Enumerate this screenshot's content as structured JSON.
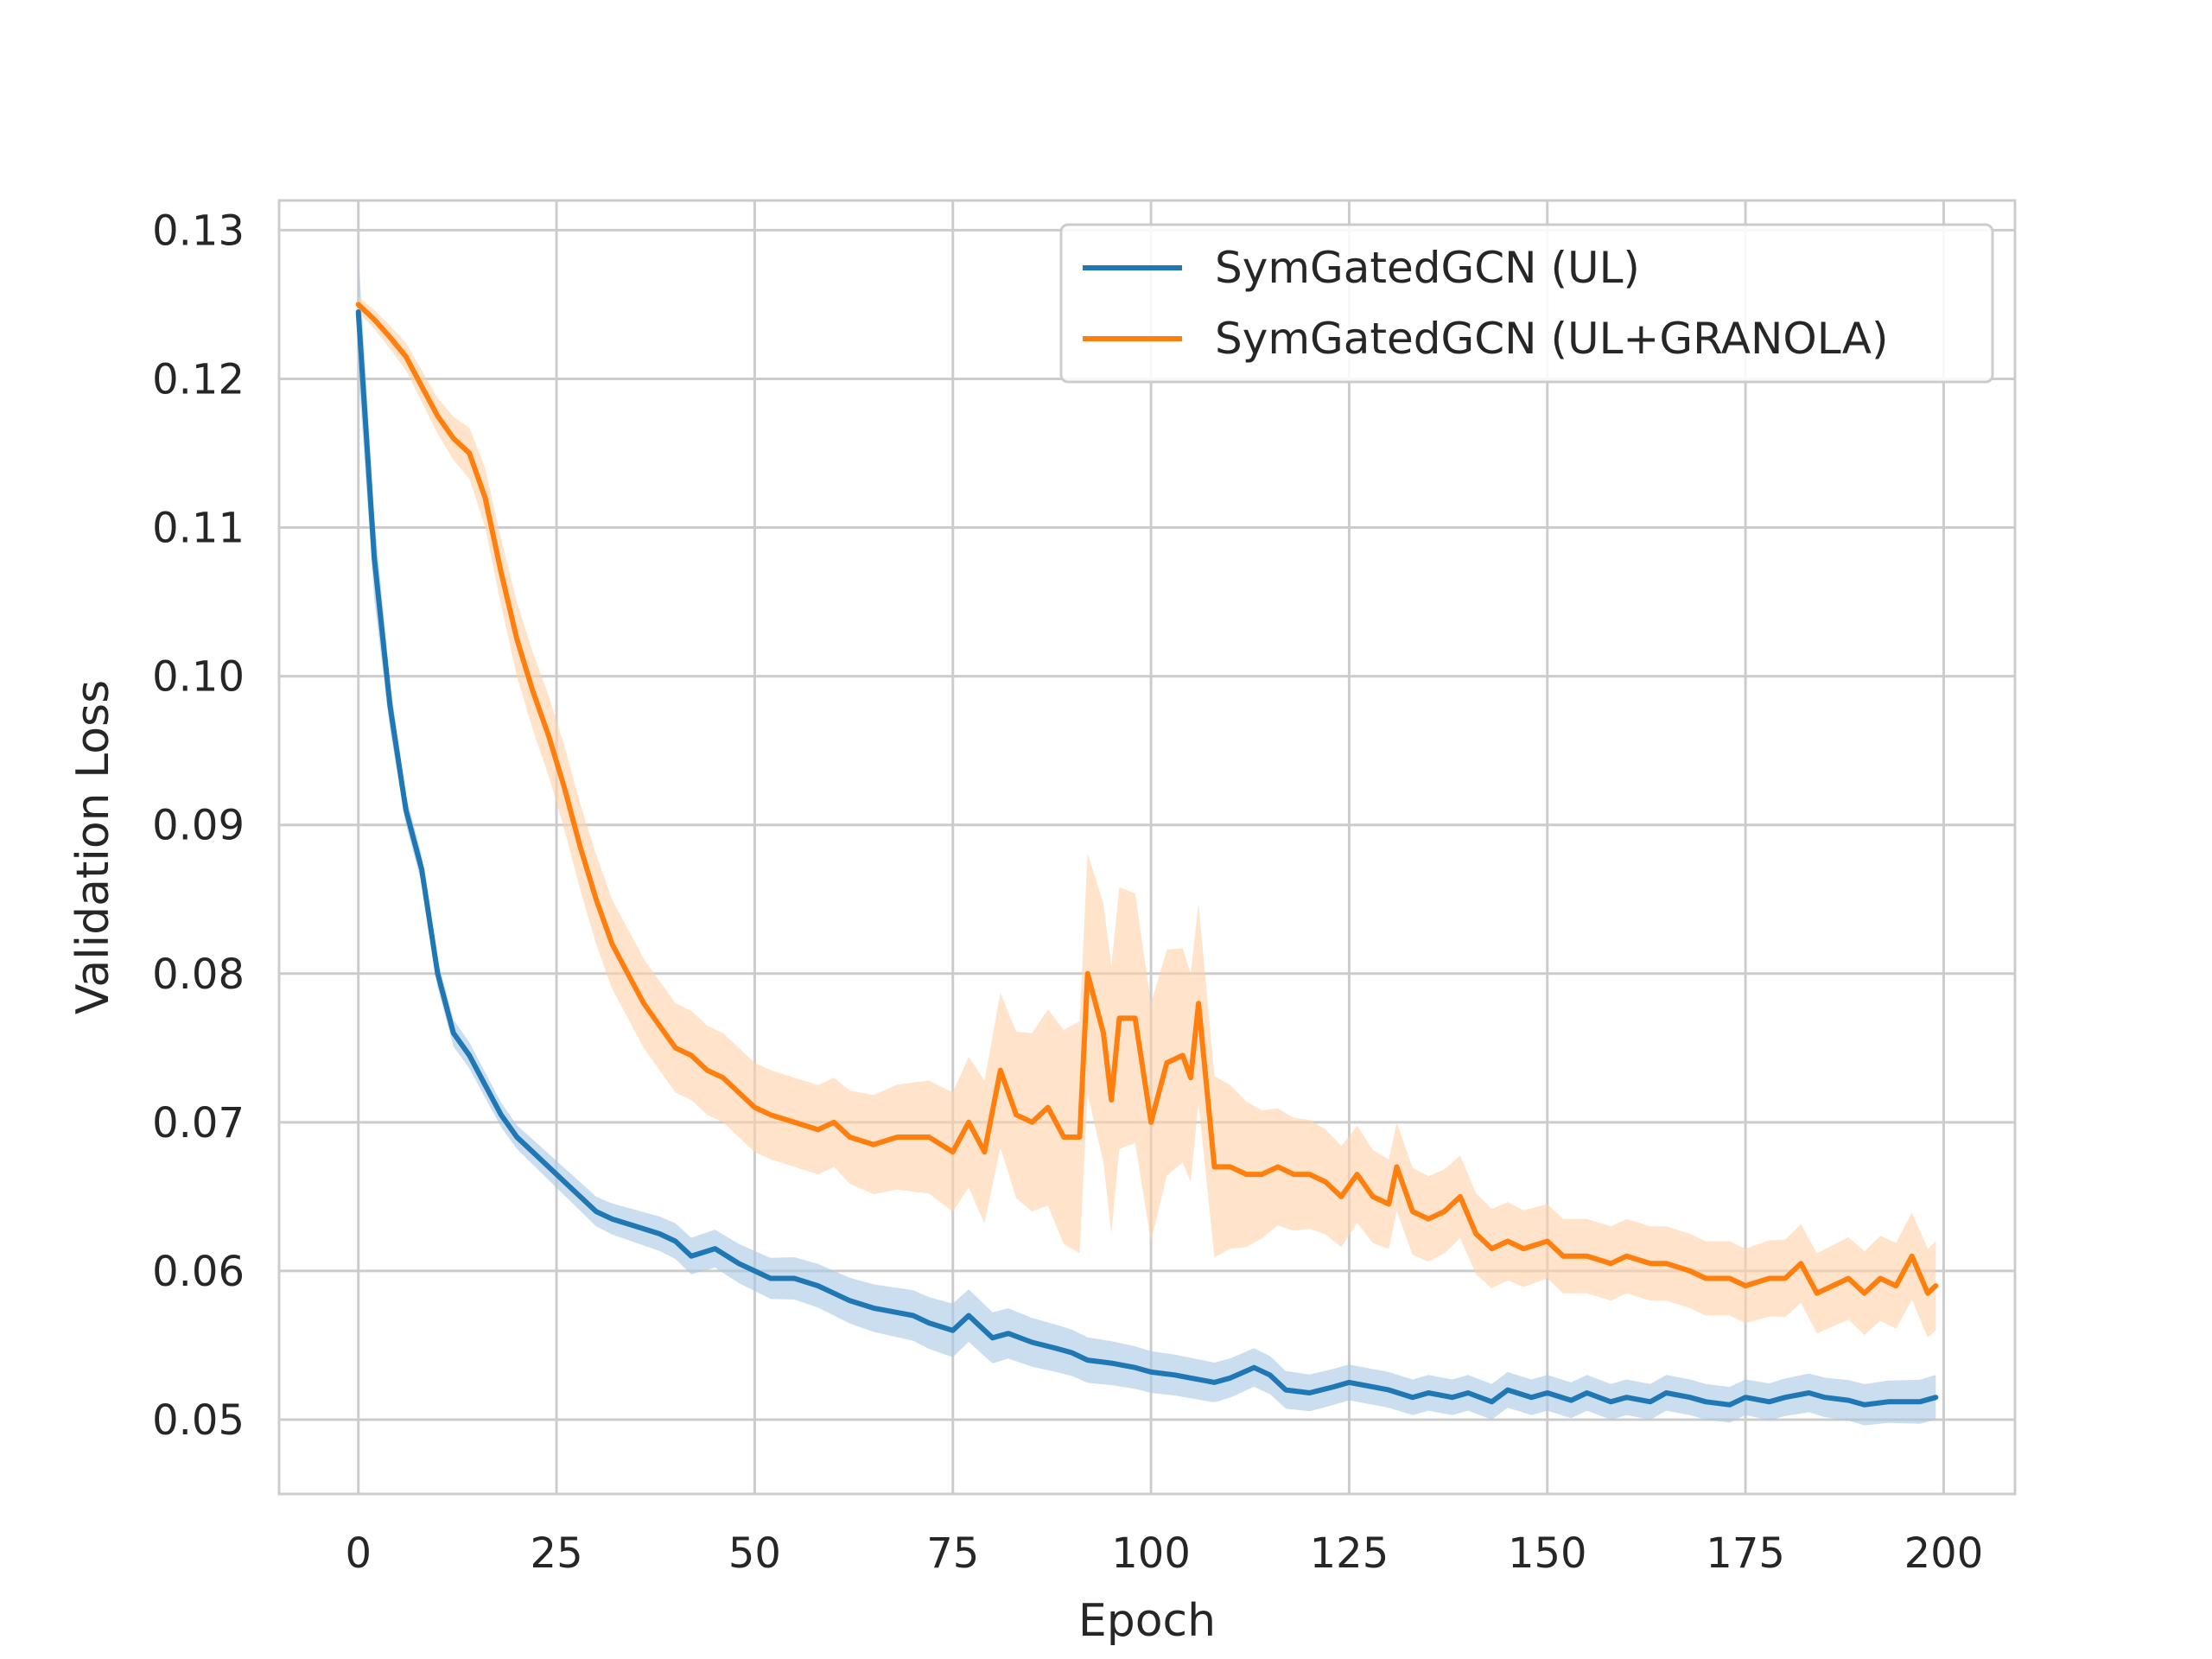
{
  "chart_data": {
    "type": "line",
    "title": "",
    "xlabel": "Epoch",
    "ylabel": "Validation Loss",
    "xlim": [
      -10,
      209
    ],
    "ylim": [
      0.045,
      0.132
    ],
    "xticks": [
      0,
      25,
      50,
      75,
      100,
      125,
      150,
      175,
      200
    ],
    "xtick_labels": [
      "0",
      "25",
      "50",
      "75",
      "100",
      "125",
      "150",
      "175",
      "200"
    ],
    "yticks": [
      0.05,
      0.06,
      0.07,
      0.08,
      0.09,
      0.1,
      0.11,
      0.12,
      0.13
    ],
    "ytick_labels": [
      "0.05",
      "0.06",
      "0.07",
      "0.08",
      "0.09",
      "0.10",
      "0.11",
      "0.12",
      "0.13"
    ],
    "grid": true,
    "legend_position": "top-right",
    "series": [
      {
        "name": "SymGatedGCN (UL)",
        "color": "#1f77b4",
        "band_color": "#a6c8e4",
        "points": [
          [
            0,
            0.1245
          ],
          [
            2,
            0.108
          ],
          [
            4,
            0.098
          ],
          [
            6,
            0.091
          ],
          [
            8,
            0.087
          ],
          [
            10,
            0.08
          ],
          [
            12,
            0.076
          ],
          [
            14,
            0.0745
          ],
          [
            16,
            0.0725
          ],
          [
            18,
            0.0705
          ],
          [
            20,
            0.069
          ],
          [
            22,
            0.068
          ],
          [
            24,
            0.067
          ],
          [
            26,
            0.066
          ],
          [
            28,
            0.065
          ],
          [
            30,
            0.064
          ],
          [
            32,
            0.0635
          ],
          [
            35,
            0.063
          ],
          [
            38,
            0.0625
          ],
          [
            40,
            0.062
          ],
          [
            42,
            0.061
          ],
          [
            45,
            0.0615
          ],
          [
            48,
            0.0605
          ],
          [
            50,
            0.06
          ],
          [
            52,
            0.0595
          ],
          [
            55,
            0.0595
          ],
          [
            58,
            0.059
          ],
          [
            60,
            0.0585
          ],
          [
            62,
            0.058
          ],
          [
            65,
            0.0575
          ],
          [
            68,
            0.0572
          ],
          [
            70,
            0.057
          ],
          [
            72,
            0.0565
          ],
          [
            75,
            0.056
          ],
          [
            77,
            0.057
          ],
          [
            80,
            0.0555
          ],
          [
            82,
            0.0558
          ],
          [
            85,
            0.0552
          ],
          [
            88,
            0.0548
          ],
          [
            90,
            0.0545
          ],
          [
            92,
            0.054
          ],
          [
            95,
            0.0538
          ],
          [
            98,
            0.0535
          ],
          [
            100,
            0.0532
          ],
          [
            103,
            0.053
          ],
          [
            105,
            0.0528
          ],
          [
            108,
            0.0525
          ],
          [
            110,
            0.0528
          ],
          [
            113,
            0.0535
          ],
          [
            115,
            0.053
          ],
          [
            117,
            0.052
          ],
          [
            120,
            0.0518
          ],
          [
            123,
            0.0522
          ],
          [
            125,
            0.0525
          ],
          [
            128,
            0.0522
          ],
          [
            130,
            0.052
          ],
          [
            133,
            0.0515
          ],
          [
            135,
            0.0518
          ],
          [
            138,
            0.0515
          ],
          [
            140,
            0.0518
          ],
          [
            143,
            0.0512
          ],
          [
            145,
            0.052
          ],
          [
            148,
            0.0515
          ],
          [
            150,
            0.0518
          ],
          [
            153,
            0.0513
          ],
          [
            155,
            0.0518
          ],
          [
            158,
            0.0512
          ],
          [
            160,
            0.0515
          ],
          [
            163,
            0.0512
          ],
          [
            165,
            0.0518
          ],
          [
            168,
            0.0515
          ],
          [
            170,
            0.0512
          ],
          [
            173,
            0.051
          ],
          [
            175,
            0.0515
          ],
          [
            178,
            0.0512
          ],
          [
            180,
            0.0515
          ],
          [
            183,
            0.0518
          ],
          [
            185,
            0.0515
          ],
          [
            188,
            0.0513
          ],
          [
            190,
            0.051
          ],
          [
            193,
            0.0512
          ],
          [
            195,
            0.0512
          ],
          [
            197,
            0.0512
          ],
          [
            199,
            0.0515
          ]
        ],
        "band_halfwidth": [
          [
            0,
            0.004
          ],
          [
            5,
            0.001
          ],
          [
            20,
            0.0008
          ],
          [
            40,
            0.0012
          ],
          [
            60,
            0.0015
          ],
          [
            75,
            0.0018
          ],
          [
            100,
            0.0014
          ],
          [
            125,
            0.0012
          ],
          [
            150,
            0.0012
          ],
          [
            175,
            0.0012
          ],
          [
            199,
            0.0015
          ]
        ]
      },
      {
        "name": "SymGatedGCN (UL+GRANOLA)",
        "color": "#ff7f0e",
        "band_color": "#ffd1a6",
        "points": [
          [
            0,
            0.125
          ],
          [
            2,
            0.124
          ],
          [
            4,
            0.1228
          ],
          [
            6,
            0.1215
          ],
          [
            8,
            0.1195
          ],
          [
            10,
            0.1175
          ],
          [
            12,
            0.116
          ],
          [
            14,
            0.115
          ],
          [
            16,
            0.112
          ],
          [
            18,
            0.107
          ],
          [
            20,
            0.1025
          ],
          [
            22,
            0.099
          ],
          [
            24,
            0.096
          ],
          [
            26,
            0.0925
          ],
          [
            28,
            0.0885
          ],
          [
            30,
            0.085
          ],
          [
            32,
            0.082
          ],
          [
            34,
            0.08
          ],
          [
            36,
            0.078
          ],
          [
            38,
            0.0765
          ],
          [
            40,
            0.075
          ],
          [
            42,
            0.0745
          ],
          [
            44,
            0.0735
          ],
          [
            46,
            0.073
          ],
          [
            48,
            0.072
          ],
          [
            50,
            0.071
          ],
          [
            52,
            0.0705
          ],
          [
            55,
            0.07
          ],
          [
            58,
            0.0695
          ],
          [
            60,
            0.07
          ],
          [
            62,
            0.069
          ],
          [
            65,
            0.0685
          ],
          [
            68,
            0.069
          ],
          [
            70,
            0.069
          ],
          [
            72,
            0.069
          ],
          [
            75,
            0.068
          ],
          [
            77,
            0.07
          ],
          [
            79,
            0.068
          ],
          [
            81,
            0.0735
          ],
          [
            83,
            0.0705
          ],
          [
            85,
            0.07
          ],
          [
            87,
            0.071
          ],
          [
            89,
            0.069
          ],
          [
            91,
            0.069
          ],
          [
            92,
            0.08
          ],
          [
            94,
            0.076
          ],
          [
            95,
            0.0715
          ],
          [
            96,
            0.077
          ],
          [
            98,
            0.077
          ],
          [
            100,
            0.07
          ],
          [
            102,
            0.074
          ],
          [
            104,
            0.0745
          ],
          [
            105,
            0.073
          ],
          [
            106,
            0.078
          ],
          [
            108,
            0.067
          ],
          [
            110,
            0.067
          ],
          [
            112,
            0.0665
          ],
          [
            114,
            0.0665
          ],
          [
            116,
            0.067
          ],
          [
            118,
            0.0665
          ],
          [
            120,
            0.0665
          ],
          [
            122,
            0.066
          ],
          [
            124,
            0.065
          ],
          [
            126,
            0.0665
          ],
          [
            128,
            0.065
          ],
          [
            130,
            0.0645
          ],
          [
            131,
            0.067
          ],
          [
            133,
            0.064
          ],
          [
            135,
            0.0635
          ],
          [
            137,
            0.064
          ],
          [
            139,
            0.065
          ],
          [
            141,
            0.0625
          ],
          [
            143,
            0.0615
          ],
          [
            145,
            0.062
          ],
          [
            147,
            0.0615
          ],
          [
            150,
            0.062
          ],
          [
            152,
            0.061
          ],
          [
            155,
            0.061
          ],
          [
            158,
            0.0605
          ],
          [
            160,
            0.061
          ],
          [
            163,
            0.0605
          ],
          [
            165,
            0.0605
          ],
          [
            168,
            0.06
          ],
          [
            170,
            0.0595
          ],
          [
            173,
            0.0595
          ],
          [
            175,
            0.059
          ],
          [
            178,
            0.0595
          ],
          [
            180,
            0.0595
          ],
          [
            182,
            0.0605
          ],
          [
            184,
            0.0585
          ],
          [
            186,
            0.059
          ],
          [
            188,
            0.0595
          ],
          [
            190,
            0.0585
          ],
          [
            192,
            0.0595
          ],
          [
            194,
            0.059
          ],
          [
            196,
            0.061
          ],
          [
            198,
            0.0585
          ],
          [
            199,
            0.059
          ]
        ],
        "band_halfwidth": [
          [
            0,
            0.0005
          ],
          [
            10,
            0.0012
          ],
          [
            20,
            0.0025
          ],
          [
            30,
            0.003
          ],
          [
            40,
            0.003
          ],
          [
            60,
            0.003
          ],
          [
            75,
            0.004
          ],
          [
            85,
            0.006
          ],
          [
            95,
            0.009
          ],
          [
            105,
            0.007
          ],
          [
            115,
            0.004
          ],
          [
            130,
            0.003
          ],
          [
            150,
            0.0025
          ],
          [
            175,
            0.0025
          ],
          [
            199,
            0.003
          ]
        ]
      }
    ]
  }
}
